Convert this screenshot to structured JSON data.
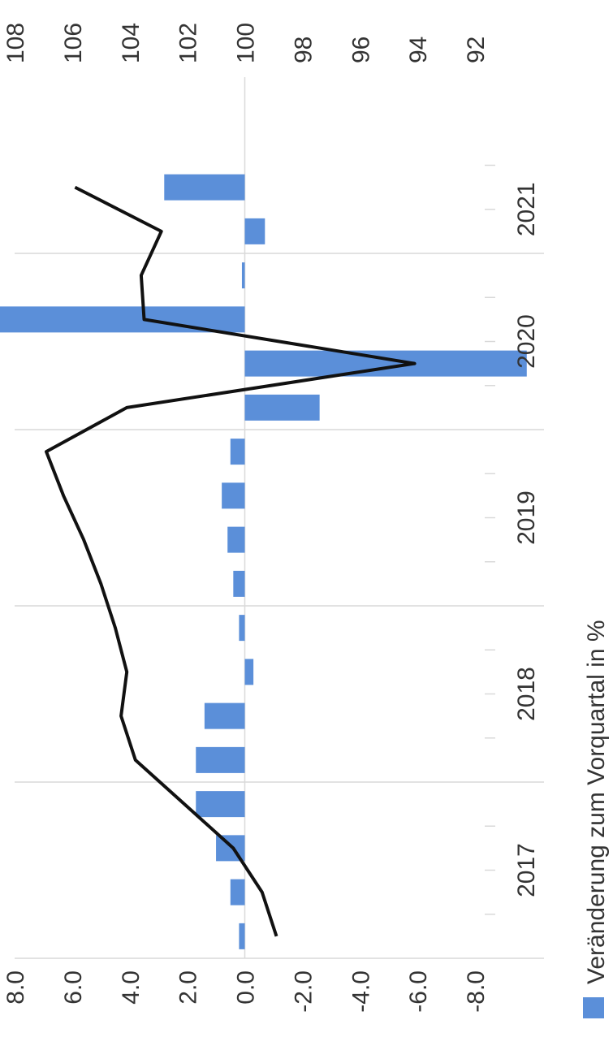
{
  "chart_data": {
    "type": "bar+line",
    "orientation": "rotated-90-clockwise",
    "categories": [
      "2017 Q1",
      "2017 Q2",
      "2017 Q3",
      "2017 Q4",
      "2018 Q1",
      "2018 Q2",
      "2018 Q3",
      "2018 Q4",
      "2019 Q1",
      "2019 Q2",
      "2019 Q3",
      "2019 Q4",
      "2020 Q1",
      "2020 Q2",
      "2020 Q3",
      "2020 Q4",
      "2021 Q1",
      "2021 Q2"
    ],
    "year_labels": [
      {
        "label": "2017",
        "start": 0,
        "span": 4
      },
      {
        "label": "2018",
        "start": 4,
        "span": 4
      },
      {
        "label": "2019",
        "start": 8,
        "span": 4
      },
      {
        "label": "2020",
        "start": 12,
        "span": 4
      },
      {
        "label": "2021",
        "start": 16,
        "span": 2
      }
    ],
    "series": [
      {
        "name": "Veränderung zum Vorquartal in %",
        "type": "bar",
        "axis": "primary",
        "values": [
          0.2,
          0.5,
          1.0,
          1.7,
          1.7,
          1.4,
          -0.3,
          0.2,
          0.4,
          0.6,
          0.8,
          0.5,
          -2.6,
          -9.8,
          10.0,
          0.1,
          -0.7,
          2.8
        ]
      },
      {
        "type": "line",
        "axis": "secondary",
        "values": [
          98.9,
          99.4,
          100.4,
          102.1,
          103.8,
          104.3,
          104.1,
          104.5,
          105.0,
          105.6,
          106.3,
          106.9,
          104.1,
          94.1,
          103.5,
          103.6,
          102.9,
          105.9
        ]
      }
    ],
    "primary_axis": {
      "ticks": [
        "8.0",
        "6.0",
        "4.0",
        "2.0",
        "0.0",
        "-2.0",
        "-4.0",
        "-6.0",
        "-8.0"
      ],
      "range": [
        -8,
        8
      ]
    },
    "secondary_axis": {
      "ticks": [
        "108",
        "106",
        "104",
        "102",
        "100",
        "98",
        "96",
        "94",
        "92"
      ],
      "range": [
        92,
        108
      ]
    },
    "colors": {
      "bar": "#5b8fd9",
      "line": "#111111",
      "grid": "#d9d9d9",
      "text": "#333333"
    },
    "legend": {
      "placement": "bottom",
      "label": "Veränderung zum Vorquartal in %"
    }
  }
}
